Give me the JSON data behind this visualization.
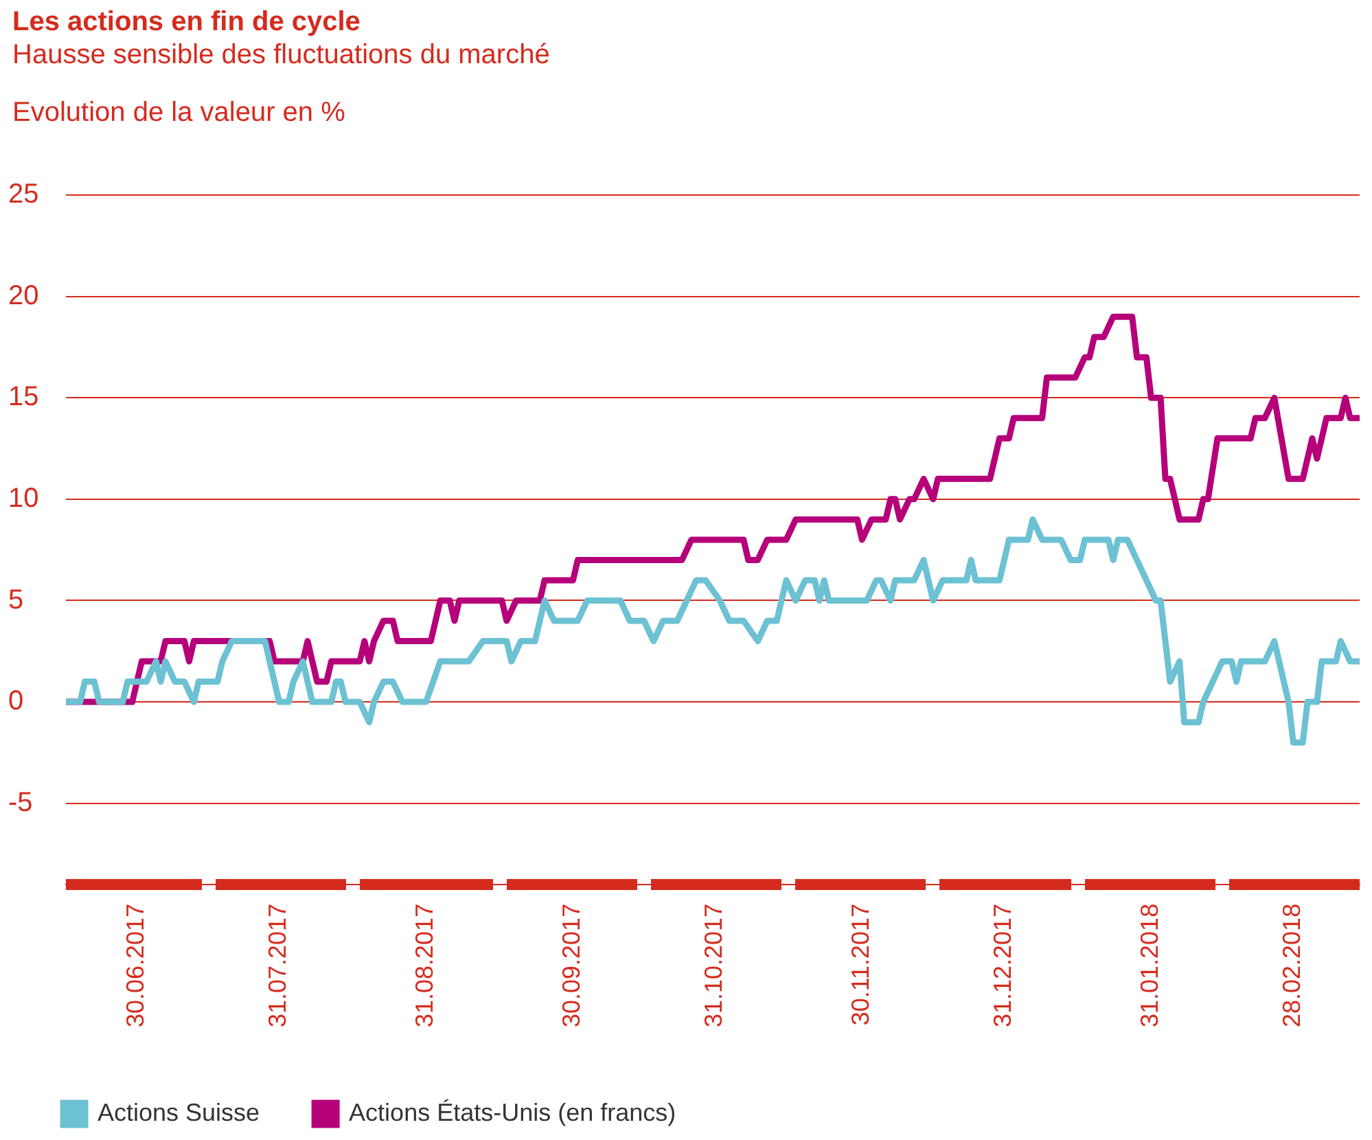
{
  "chart_data": {
    "type": "line",
    "title": "Les actions en fin de cycle",
    "subtitle": "Hausse sensible des fluctuations du marché",
    "ylabel": "Evolution de la valeur en %",
    "xlim": [
      "2017-06-01",
      "2018-03-01"
    ],
    "xticks": [
      {
        "value": "2017-06-16",
        "label": "30.06.2017"
      },
      {
        "value": "2017-07-16",
        "label": "31.07.2017"
      },
      {
        "value": "2017-08-16",
        "label": "31.08.2017"
      },
      {
        "value": "2017-09-16",
        "label": "30.09.2017"
      },
      {
        "value": "2017-10-16",
        "label": "31.10.2017"
      },
      {
        "value": "2017-11-16",
        "label": "30.11.2017"
      },
      {
        "value": "2017-12-16",
        "label": "31.12.2017"
      },
      {
        "value": "2018-01-16",
        "label": "31.01.2018"
      },
      {
        "value": "2018-02-15",
        "label": "28.02.2018"
      }
    ],
    "ylim": [
      -9,
      25
    ],
    "yticks": [
      -5,
      0,
      5,
      10,
      15,
      20,
      25
    ],
    "grid": "y",
    "legend": "bottom",
    "marker": "none",
    "line_style": "solid",
    "series": [
      {
        "name": "Actions Suisse",
        "color": "#6cc1d3",
        "x": [
          "2017-06-01",
          "2017-06-04",
          "2017-06-05",
          "2017-06-07",
          "2017-06-08",
          "2017-06-13",
          "2017-06-14",
          "2017-06-18",
          "2017-06-20",
          "2017-06-21",
          "2017-06-22",
          "2017-06-24",
          "2017-06-26",
          "2017-06-28",
          "2017-06-29",
          "2017-07-03",
          "2017-07-04",
          "2017-07-06",
          "2017-07-13",
          "2017-07-16",
          "2017-07-18",
          "2017-07-19",
          "2017-07-21",
          "2017-07-22",
          "2017-07-23",
          "2017-07-27",
          "2017-07-28",
          "2017-07-29",
          "2017-07-30",
          "2017-08-02",
          "2017-08-04",
          "2017-08-05",
          "2017-08-07",
          "2017-08-09",
          "2017-08-11",
          "2017-08-16",
          "2017-08-19",
          "2017-08-25",
          "2017-08-28",
          "2017-09-02",
          "2017-09-03",
          "2017-09-05",
          "2017-09-08",
          "2017-09-10",
          "2017-09-12",
          "2017-09-17",
          "2017-09-19",
          "2017-09-26",
          "2017-09-28",
          "2017-10-01",
          "2017-10-03",
          "2017-10-05",
          "2017-10-08",
          "2017-10-10",
          "2017-10-12",
          "2017-10-14",
          "2017-10-17",
          "2017-10-19",
          "2017-10-22",
          "2017-10-25",
          "2017-10-27",
          "2017-10-29",
          "2017-10-30",
          "2017-10-31",
          "2017-11-02",
          "2017-11-04",
          "2017-11-06",
          "2017-11-07",
          "2017-11-08",
          "2017-11-09",
          "2017-11-17",
          "2017-11-19",
          "2017-11-20",
          "2017-11-22",
          "2017-11-23",
          "2017-11-27",
          "2017-11-29",
          "2017-12-01",
          "2017-12-03",
          "2017-12-08",
          "2017-12-09",
          "2017-12-10",
          "2017-12-15",
          "2017-12-17",
          "2017-12-21",
          "2017-12-22",
          "2017-12-24",
          "2017-12-28",
          "2017-12-30",
          "2018-01-01",
          "2018-01-02",
          "2018-01-07",
          "2018-01-08",
          "2018-01-09",
          "2018-01-11",
          "2018-01-13",
          "2018-01-15",
          "2018-01-17",
          "2018-01-18",
          "2018-01-20",
          "2018-01-22",
          "2018-01-23",
          "2018-01-26",
          "2018-01-27",
          "2018-01-29",
          "2018-01-31",
          "2018-02-02",
          "2018-02-03",
          "2018-02-04",
          "2018-02-09",
          "2018-02-11",
          "2018-02-14",
          "2018-02-15",
          "2018-02-17",
          "2018-02-18",
          "2018-02-20",
          "2018-02-21",
          "2018-02-24",
          "2018-02-25",
          "2018-02-27",
          "2018-03-01"
        ],
        "values": [
          0,
          0,
          1,
          1,
          0,
          0,
          1,
          1,
          2,
          1,
          2,
          1,
          1,
          0,
          1,
          1,
          2,
          3,
          3,
          0,
          0,
          1,
          2,
          1,
          0,
          0,
          1,
          1,
          0,
          0,
          -1,
          0,
          1,
          1,
          0,
          0,
          2,
          2,
          3,
          3,
          2,
          3,
          3,
          5,
          4,
          4,
          5,
          5,
          4,
          4,
          3,
          4,
          4,
          5,
          6,
          6,
          5,
          4,
          4,
          3,
          4,
          4,
          5,
          6,
          5,
          6,
          6,
          5,
          6,
          5,
          5,
          6,
          6,
          5,
          6,
          6,
          7,
          5,
          6,
          6,
          7,
          6,
          6,
          8,
          8,
          9,
          8,
          8,
          7,
          7,
          8,
          8,
          7,
          8,
          8,
          7,
          6,
          5,
          5,
          1,
          2,
          -1,
          -1,
          0,
          1,
          2,
          2,
          1,
          2,
          2,
          3,
          0,
          -2,
          -2,
          0,
          0,
          2,
          2,
          3,
          2,
          2
        ]
      },
      {
        "name": "Actions États-Unis (en francs)",
        "color": "#b5007a",
        "x": [
          "2017-06-01",
          "2017-06-15",
          "2017-06-16",
          "2017-06-17",
          "2017-06-21",
          "2017-06-22",
          "2017-06-26",
          "2017-06-27",
          "2017-06-28",
          "2017-07-14",
          "2017-07-15",
          "2017-07-21",
          "2017-07-22",
          "2017-07-23",
          "2017-07-24",
          "2017-07-26",
          "2017-07-27",
          "2017-08-02",
          "2017-08-03",
          "2017-08-04",
          "2017-08-05",
          "2017-08-07",
          "2017-08-09",
          "2017-08-10",
          "2017-08-17",
          "2017-08-19",
          "2017-08-21",
          "2017-08-22",
          "2017-08-23",
          "2017-09-01",
          "2017-09-02",
          "2017-09-04",
          "2017-09-09",
          "2017-09-10",
          "2017-09-16",
          "2017-09-17",
          "2017-10-09",
          "2017-10-11",
          "2017-10-22",
          "2017-10-23",
          "2017-10-25",
          "2017-10-27",
          "2017-10-31",
          "2017-11-02",
          "2017-11-15",
          "2017-11-16",
          "2017-11-18",
          "2017-11-21",
          "2017-11-22",
          "2017-11-23",
          "2017-11-24",
          "2017-11-26",
          "2017-11-27",
          "2017-11-29",
          "2017-12-01",
          "2017-12-02",
          "2017-12-13",
          "2017-12-15",
          "2017-12-17",
          "2017-12-18",
          "2017-12-24",
          "2017-12-25",
          "2017-12-31",
          "2018-01-02",
          "2018-01-03",
          "2018-01-04",
          "2018-01-06",
          "2018-01-08",
          "2018-01-12",
          "2018-01-13",
          "2018-01-15",
          "2018-01-16",
          "2018-01-18",
          "2018-01-19",
          "2018-01-20",
          "2018-01-22",
          "2018-01-26",
          "2018-01-27",
          "2018-01-28",
          "2018-01-30",
          "2018-02-06",
          "2018-02-07",
          "2018-02-09",
          "2018-02-11",
          "2018-02-14",
          "2018-02-17",
          "2018-02-19",
          "2018-02-20",
          "2018-02-22",
          "2018-02-25",
          "2018-02-26",
          "2018-02-27",
          "2018-03-01"
        ],
        "values": [
          0,
          0,
          1,
          2,
          2,
          3,
          3,
          2,
          3,
          3,
          2,
          2,
          3,
          2,
          1,
          1,
          2,
          2,
          3,
          2,
          3,
          4,
          4,
          3,
          3,
          5,
          5,
          4,
          5,
          5,
          4,
          5,
          5,
          6,
          6,
          7,
          7,
          8,
          8,
          7,
          7,
          8,
          8,
          9,
          9,
          8,
          9,
          9,
          10,
          10,
          9,
          10,
          10,
          11,
          10,
          11,
          11,
          13,
          13,
          14,
          14,
          16,
          16,
          17,
          17,
          18,
          18,
          19,
          19,
          17,
          17,
          15,
          15,
          11,
          11,
          9,
          9,
          10,
          10,
          13,
          13,
          14,
          14,
          15,
          11,
          11,
          13,
          12,
          14,
          14,
          15,
          14,
          14
        ]
      }
    ]
  }
}
